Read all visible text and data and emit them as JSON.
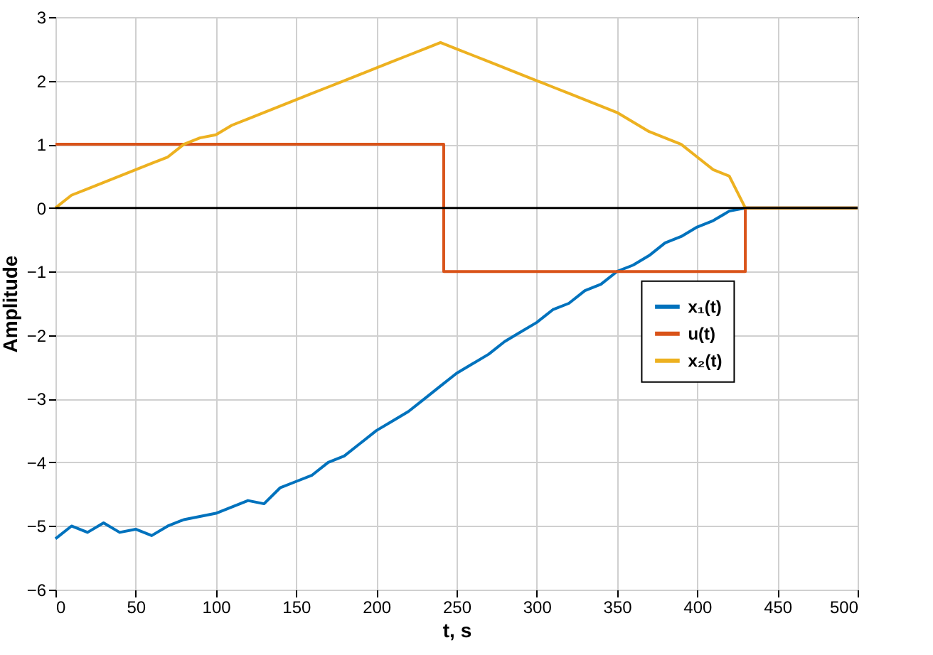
{
  "chart_data": {
    "type": "line",
    "xlabel": "t, s",
    "ylabel": "Amplitude",
    "xlim": [
      0,
      500
    ],
    "xticks": [
      0,
      50,
      100,
      150,
      200,
      250,
      300,
      350,
      400,
      450,
      500
    ],
    "ylim": [
      -6,
      3
    ],
    "yticks": [
      -6,
      -5,
      -4,
      -3,
      -2,
      -1,
      0,
      1,
      2,
      3
    ],
    "grid": true,
    "legend": "right",
    "ref_lines": [
      {
        "axis": "y",
        "value": 0,
        "color": "#000000"
      }
    ],
    "series": [
      {
        "name": "x₁(t)",
        "color": "#0072bd",
        "x": [
          0,
          10,
          20,
          30,
          40,
          50,
          60,
          70,
          80,
          90,
          100,
          110,
          120,
          130,
          140,
          150,
          160,
          170,
          180,
          190,
          200,
          210,
          220,
          230,
          240,
          250,
          260,
          270,
          280,
          290,
          300,
          310,
          320,
          330,
          340,
          350,
          360,
          370,
          380,
          390,
          400,
          410,
          420,
          430,
          500
        ],
        "values": [
          -5.2,
          -5.0,
          -5.1,
          -4.95,
          -5.1,
          -5.05,
          -5.15,
          -5.0,
          -4.9,
          -4.85,
          -4.8,
          -4.7,
          -4.6,
          -4.65,
          -4.4,
          -4.3,
          -4.2,
          -4.0,
          -3.9,
          -3.7,
          -3.5,
          -3.35,
          -3.2,
          -3.0,
          -2.8,
          -2.6,
          -2.45,
          -2.3,
          -2.1,
          -1.95,
          -1.8,
          -1.6,
          -1.5,
          -1.3,
          -1.2,
          -1.0,
          -0.9,
          -0.75,
          -0.55,
          -0.45,
          -0.3,
          -0.2,
          -0.05,
          0,
          0
        ]
      },
      {
        "name": "u(t)",
        "color": "#d95319",
        "x": [
          0,
          242,
          242,
          430,
          430,
          500
        ],
        "values": [
          1,
          1,
          -1,
          -1,
          0,
          0
        ]
      },
      {
        "name": "x₂(t)",
        "color": "#edb120",
        "x": [
          0,
          10,
          20,
          30,
          40,
          50,
          60,
          70,
          80,
          90,
          100,
          110,
          120,
          130,
          140,
          150,
          160,
          170,
          180,
          190,
          200,
          210,
          220,
          230,
          240,
          250,
          260,
          270,
          280,
          290,
          300,
          310,
          320,
          330,
          340,
          350,
          360,
          370,
          380,
          390,
          400,
          410,
          420,
          430,
          500
        ],
        "values": [
          0.0,
          0.2,
          0.3,
          0.4,
          0.5,
          0.6,
          0.7,
          0.8,
          1.0,
          1.1,
          1.15,
          1.3,
          1.4,
          1.5,
          1.6,
          1.7,
          1.8,
          1.9,
          2.0,
          2.1,
          2.2,
          2.3,
          2.4,
          2.5,
          2.6,
          2.5,
          2.4,
          2.3,
          2.2,
          2.1,
          2.0,
          1.9,
          1.8,
          1.7,
          1.6,
          1.5,
          1.35,
          1.2,
          1.1,
          1.0,
          0.8,
          0.6,
          0.5,
          0.0,
          0.0
        ]
      }
    ]
  }
}
